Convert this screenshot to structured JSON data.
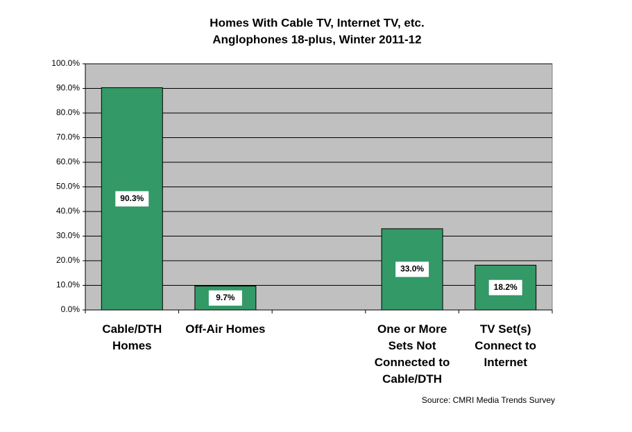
{
  "chart_data": {
    "type": "bar",
    "title": "Homes With Cable TV, Internet TV, etc.",
    "subtitle": "Anglophones 18-plus, Winter 2011-12",
    "source": "Source: CMRI Media Trends Survey",
    "categories": [
      "Cable/DTH Homes",
      "Off-Air Homes",
      null,
      "One or More Sets Not Connected to Cable/DTH",
      "TV Set(s) Connect to Internet"
    ],
    "values": [
      90.3,
      9.7,
      null,
      33.0,
      18.2
    ],
    "value_labels": [
      "90.3%",
      "9.7%",
      null,
      "33.0%",
      "18.2%"
    ],
    "color": "#339966",
    "ylim": [
      0,
      100
    ],
    "yticks": [
      {
        "value": 0,
        "label": "0.0%"
      },
      {
        "value": 10,
        "label": "10.0%"
      },
      {
        "value": 20,
        "label": "20.0%"
      },
      {
        "value": 30,
        "label": "30.0%"
      },
      {
        "value": 40,
        "label": "40.0%"
      },
      {
        "value": 50,
        "label": "50.0%"
      },
      {
        "value": 60,
        "label": "60.0%"
      },
      {
        "value": 70,
        "label": "70.0%"
      },
      {
        "value": 80,
        "label": "80.0%"
      },
      {
        "value": 90,
        "label": "90.0%"
      },
      {
        "value": 100,
        "label": "100.0%"
      }
    ],
    "grid": true
  }
}
